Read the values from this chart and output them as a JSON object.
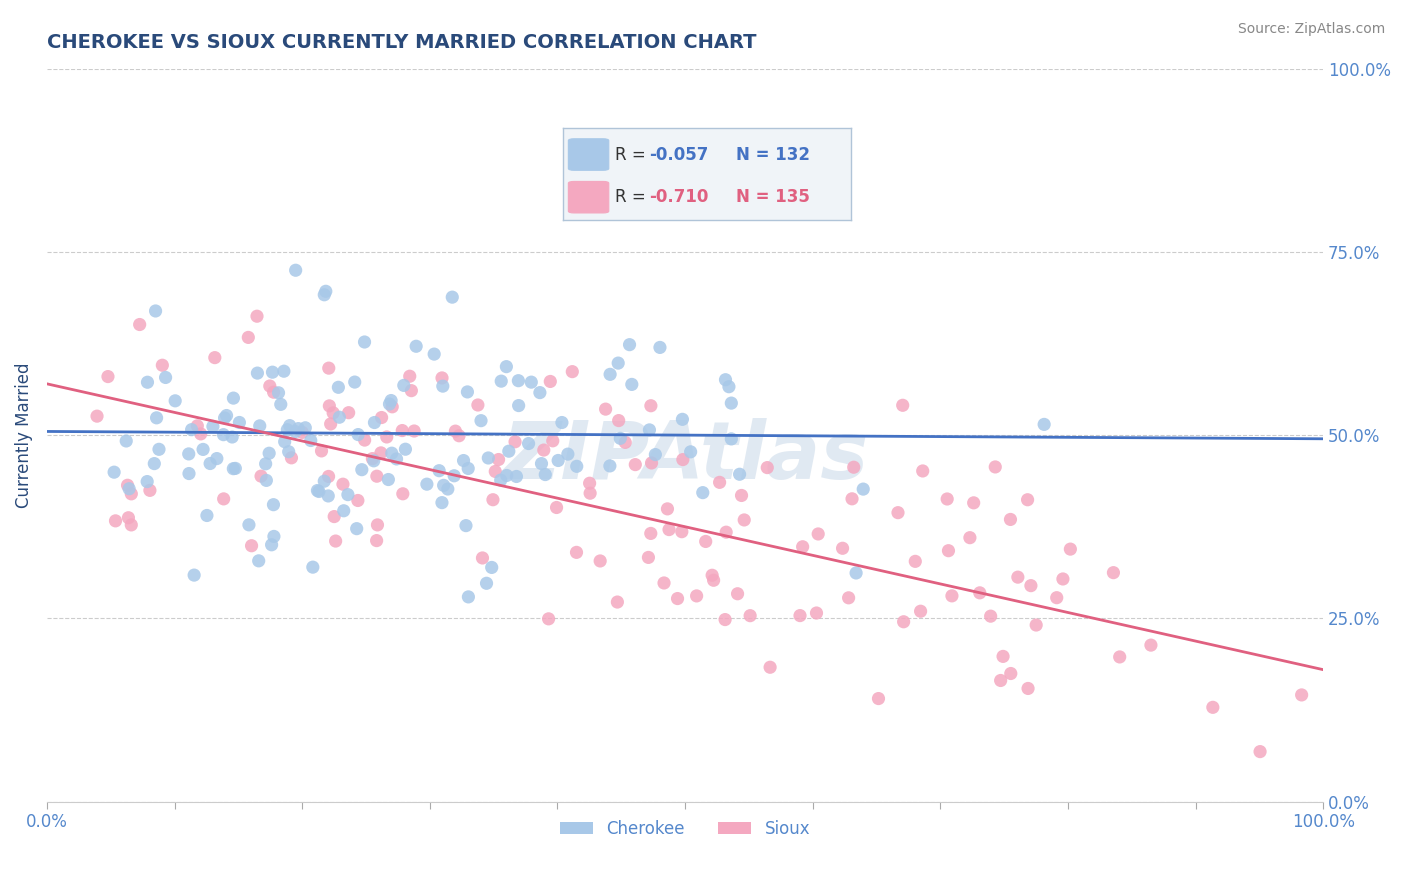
{
  "title": "CHEROKEE VS SIOUX CURRENTLY MARRIED CORRELATION CHART",
  "source": "Source: ZipAtlas.com",
  "ylabel": "Currently Married",
  "cherokee_color": "#a8c8e8",
  "sioux_color": "#f4a8c0",
  "cherokee_line_color": "#4472c4",
  "sioux_line_color": "#e06080",
  "title_color": "#2a4a7a",
  "tick_color": "#5588cc",
  "background_color": "#ffffff",
  "grid_color": "#cccccc",
  "watermark": "ZIPAtlas",
  "xlim": [
    0,
    1
  ],
  "ylim": [
    0,
    1
  ],
  "yticks": [
    0,
    0.25,
    0.5,
    0.75,
    1.0
  ],
  "cherokee_R": -0.057,
  "cherokee_N": 132,
  "sioux_R": -0.71,
  "sioux_N": 135,
  "legend_box_color": "#f0f4f8",
  "legend_border_color": "#b0c4d8"
}
